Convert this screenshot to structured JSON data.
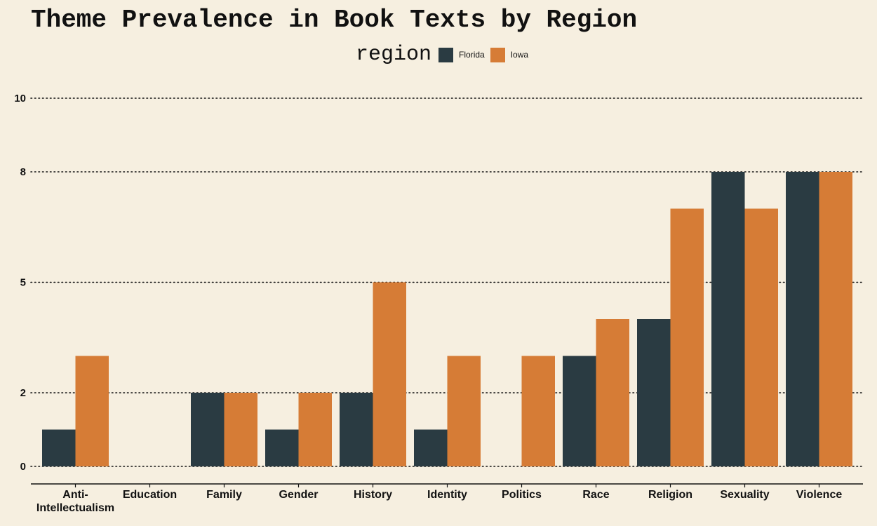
{
  "chart_data": {
    "type": "bar",
    "title": "Theme Prevalence in Book Texts by Region",
    "legend_title": "region",
    "legend_placement": "top",
    "xlabel": "",
    "ylabel": "",
    "categories": [
      "Anti-Intellectualism",
      "Education",
      "Family",
      "Gender",
      "History",
      "Identity",
      "Politics",
      "Race",
      "Religion",
      "Sexuality",
      "Violence"
    ],
    "series": [
      {
        "name": "Florida",
        "color": "#2a3b42",
        "values": [
          1,
          0,
          2,
          1,
          2,
          1,
          0,
          3,
          4,
          8,
          8
        ]
      },
      {
        "name": "Iowa",
        "color": "#d67c36",
        "values": [
          3,
          0,
          2,
          2,
          5,
          3,
          3,
          4,
          7,
          7,
          8
        ]
      }
    ],
    "yticks": [
      0,
      2,
      5,
      8,
      10
    ],
    "ytick_labels": [
      "0",
      "2",
      "5",
      "8",
      "10"
    ],
    "ylim": [
      0,
      10
    ],
    "grid": true
  }
}
